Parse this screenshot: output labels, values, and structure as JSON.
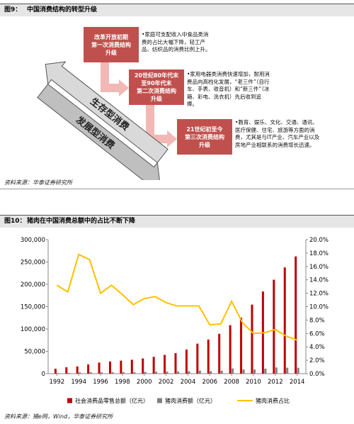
{
  "figure9": {
    "label": "图9：",
    "title": "中国消费结构的转型升级",
    "arrows": [
      "生存型消费",
      "发展型消费"
    ],
    "stages": [
      {
        "box": [
          "改革开放初期",
          "第一次消费结构",
          "升级"
        ],
        "note": "•家庭可支配收入中食品类消费的占比大幅下降，轻工产品、纺织品的消费比例上升。"
      },
      {
        "box": [
          "20世纪80年代末",
          "至90年代末",
          "第二次消费结构",
          "升级"
        ],
        "note": "•家用电器类消费快速增加，耐用消费品向高档化发展，“老三件”（自行车、手表、收音机）和“新三件”（冰箱、彩电、洗衣机）先后收到追捧。"
      },
      {
        "box": [
          "21世纪初至今",
          "第三次消费结构",
          "升级"
        ],
        "note": "•教育、娱乐、文化、交通、通讯、医疗保健、住宅、旅游等方面的消费，尤其是与IT产业、汽车产业以及房地产业相联系的消费增长迅速。"
      }
    ],
    "source": "资料来源：华泰证券研究所"
  },
  "figure10": {
    "label": "图10：",
    "source": "资料来源：猪e网，Wind，华泰证券研究所"
  },
  "chart_data": {
    "type": "bar-line",
    "title": "猪肉在中国消费总额中的占比不断下降",
    "x": [
      1992,
      1993,
      1994,
      1995,
      1996,
      1997,
      1998,
      1999,
      2000,
      2001,
      2002,
      2003,
      2004,
      2005,
      2006,
      2007,
      2008,
      2009,
      2010,
      2011,
      2012,
      2013,
      2014
    ],
    "xlim": [
      1991.2,
      2014.8
    ],
    "xticks": [
      1992,
      1994,
      1996,
      1998,
      2000,
      2002,
      2004,
      2006,
      2008,
      2010,
      2012,
      2014
    ],
    "ylim": [
      0,
      300000
    ],
    "yticks": [
      0,
      {
        "value": 50000,
        "label": "50,000"
      },
      {
        "value": 100000,
        "label": "100,000"
      },
      {
        "value": 150000,
        "label": "150,000"
      },
      {
        "value": 200000,
        "label": "200,000"
      },
      {
        "value": 250000,
        "label": "250,000"
      },
      {
        "value": 300000,
        "label": "300,000"
      }
    ],
    "y2lim": [
      0,
      20
    ],
    "y2ticks": [
      {
        "value": 0,
        "label": "0.0%"
      },
      {
        "value": 2,
        "label": "2.0%"
      },
      {
        "value": 4,
        "label": "4.0%"
      },
      {
        "value": 6,
        "label": "6.0%"
      },
      {
        "value": 8,
        "label": "8.0%"
      },
      {
        "value": 10,
        "label": "10.0%"
      },
      {
        "value": 12,
        "label": "12.0%"
      },
      {
        "value": 14,
        "label": "14.0%"
      },
      {
        "value": 16,
        "label": "16.0%"
      },
      {
        "value": 18,
        "label": "18.0%"
      },
      {
        "value": 20,
        "label": "20.0%"
      }
    ],
    "grid": false,
    "series": [
      {
        "name": "社会消费品零售总额（亿元）",
        "color": "#c00000",
        "kind": "bar",
        "values": [
          10994,
          14270,
          16265,
          20620,
          24774,
          27299,
          29153,
          31135,
          34153,
          37595,
          42027,
          45842,
          53950,
          67177,
          76410,
          89210,
          108488,
          125343,
          154554,
          183919,
          210307,
          237810,
          262394
        ]
      },
      {
        "name": "猪肉消费额（亿元）",
        "color": "#808080",
        "kind": "bar",
        "values": [
          1450,
          1740,
          2900,
          3500,
          2970,
          3600,
          3440,
          3210,
          3830,
          4320,
          4450,
          4630,
          5450,
          6790,
          5580,
          6600,
          11720,
          9530,
          9270,
          11220,
          13880,
          13320,
          13120
        ]
      },
      {
        "name": "猪肉消费占比",
        "color": "#ffc000",
        "kind": "line",
        "axis": "y2",
        "values": [
          13.2,
          12.2,
          17.8,
          17.0,
          12.0,
          13.2,
          11.8,
          10.3,
          11.2,
          11.5,
          10.6,
          10.1,
          10.1,
          10.1,
          7.3,
          7.4,
          10.8,
          7.6,
          6.0,
          6.1,
          6.6,
          5.6,
          5.0
        ]
      }
    ]
  }
}
